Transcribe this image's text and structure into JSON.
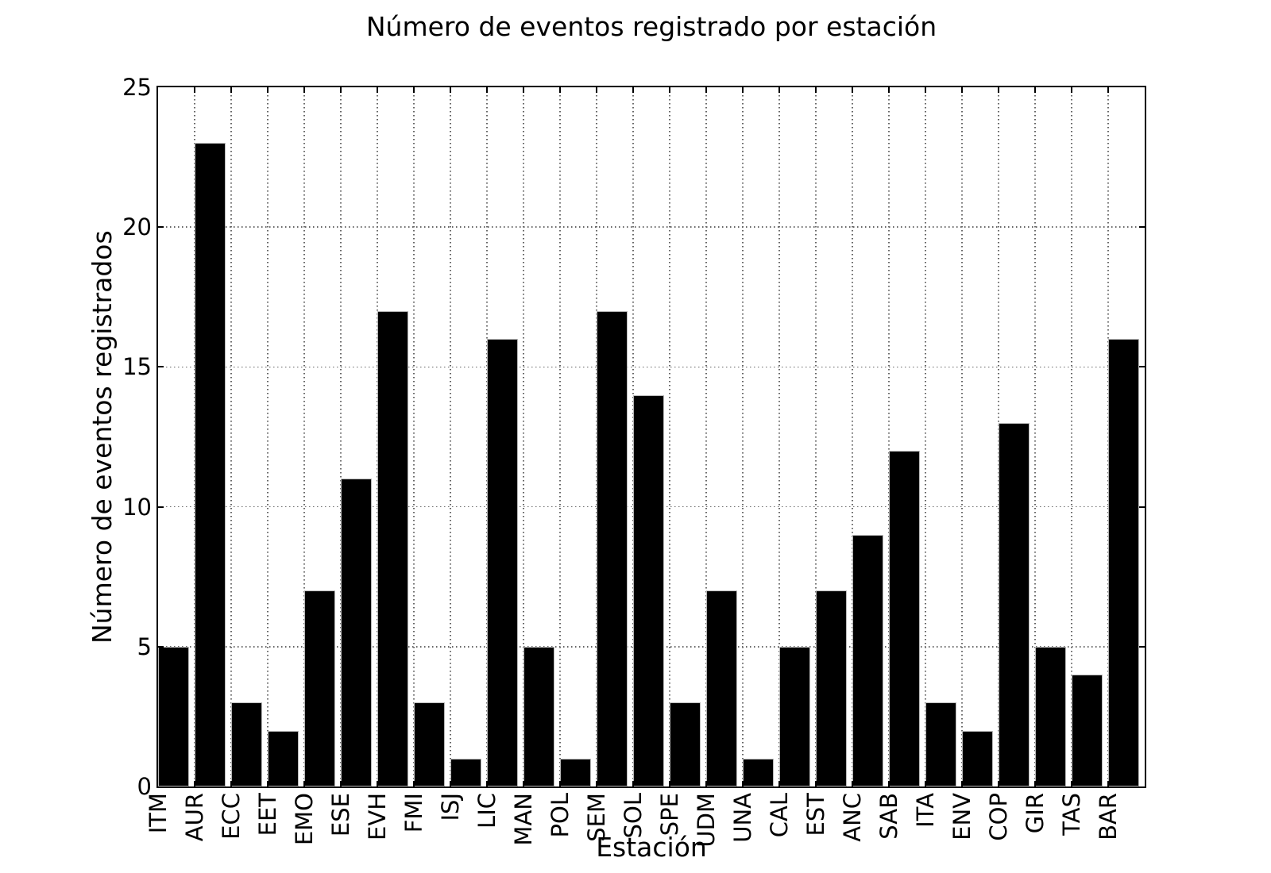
{
  "chart_data": {
    "type": "bar",
    "title": "Número de eventos registrado por estación",
    "xlabel": "Estación",
    "ylabel": "Número de eventos registrados",
    "categories": [
      "ITM",
      "AUR",
      "ECC",
      "EET",
      "EMO",
      "ESE",
      "EVH",
      "FMI",
      "ISJ",
      "LIC",
      "MAN",
      "POL",
      "SEM",
      "SOL",
      "SPE",
      "UDM",
      "UNA",
      "CAL",
      "EST",
      "ANC",
      "SAB",
      "ITA",
      "ENV",
      "COP",
      "GIR",
      "TAS",
      "BAR"
    ],
    "values": [
      5,
      23,
      3,
      2,
      7,
      11,
      17,
      3,
      1,
      16,
      5,
      1,
      17,
      14,
      3,
      7,
      1,
      5,
      7,
      9,
      12,
      3,
      2,
      13,
      5,
      4,
      16
    ],
    "ylim": [
      0,
      25
    ],
    "yticks": [
      0,
      5,
      10,
      15,
      20,
      25
    ],
    "grid": "dotted",
    "legend": "none",
    "bar_color": "#000000",
    "bar_edge_color": "#b8b8b8",
    "grid_color": "#666666",
    "axis_color": "#000000",
    "background_color": "#ffffff"
  }
}
